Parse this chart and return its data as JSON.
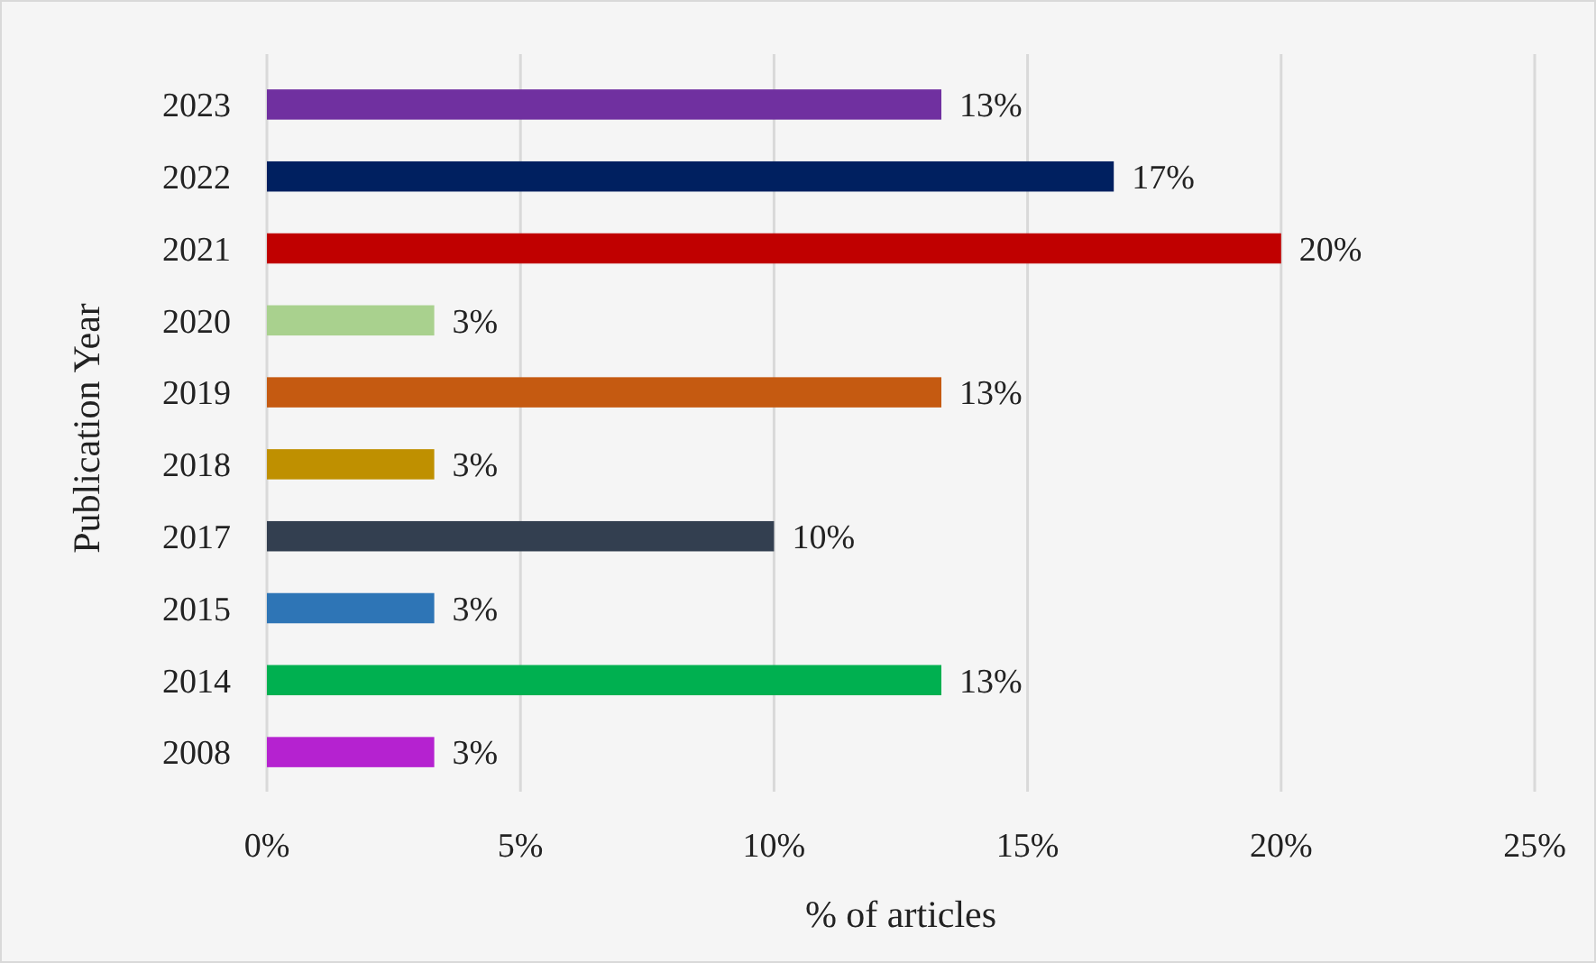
{
  "chart_data": {
    "type": "bar",
    "orientation": "horizontal",
    "xlabel": "% of articles",
    "ylabel": "Publication Year",
    "categories": [
      "2023",
      "2022",
      "2021",
      "2020",
      "2019",
      "2018",
      "2017",
      "2015",
      "2014",
      "2008"
    ],
    "values": [
      13.3,
      16.7,
      20,
      3.3,
      13.3,
      3.3,
      10,
      3.3,
      13.3,
      3.3
    ],
    "value_labels": [
      "13%",
      "17%",
      "20%",
      "3%",
      "13%",
      "3%",
      "10%",
      "3%",
      "13%",
      "3%"
    ],
    "colors": [
      "#7030a0",
      "#002060",
      "#c00000",
      "#a9d18e",
      "#c55a11",
      "#bf9000",
      "#333f50",
      "#2e75b6",
      "#00b050",
      "#b522d0"
    ],
    "xlim": [
      0,
      25
    ],
    "xticks": [
      {
        "value": 0,
        "label": "0%"
      },
      {
        "value": 5,
        "label": "5%"
      },
      {
        "value": 10,
        "label": "10%"
      },
      {
        "value": 15,
        "label": "15%"
      },
      {
        "value": 20,
        "label": "20%"
      },
      {
        "value": 25,
        "label": "25%"
      }
    ],
    "grid": "x"
  }
}
